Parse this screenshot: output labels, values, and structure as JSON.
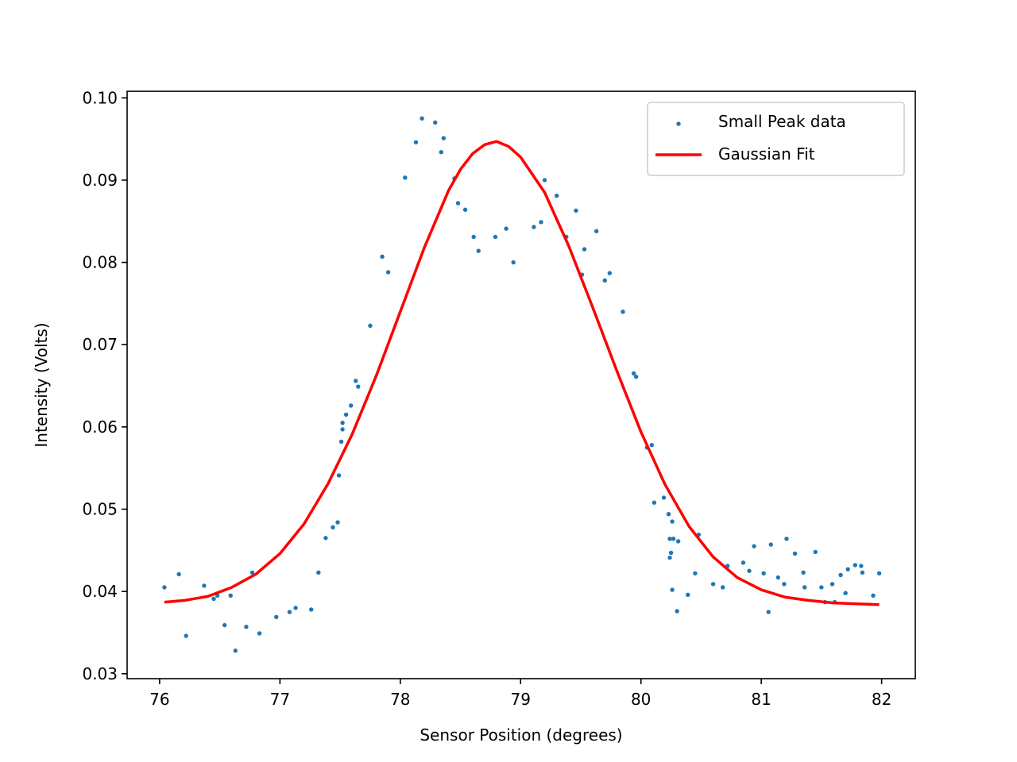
{
  "chart_data": {
    "type": "scatter",
    "title": "",
    "xlabel": "Sensor Position (degrees)",
    "ylabel": "Intensity (Volts)",
    "xlim": [
      75.73,
      82.28
    ],
    "ylim": [
      0.0294,
      0.1008
    ],
    "x_ticks": [
      76,
      77,
      78,
      79,
      80,
      81,
      82
    ],
    "x_tick_labels": [
      "76",
      "77",
      "78",
      "79",
      "80",
      "81",
      "82"
    ],
    "y_ticks": [
      0.03,
      0.04,
      0.05,
      0.06,
      0.07,
      0.08,
      0.09,
      0.1
    ],
    "y_tick_labels": [
      "0.03",
      "0.04",
      "0.05",
      "0.06",
      "0.07",
      "0.08",
      "0.09",
      "0.10"
    ],
    "grid": false,
    "legend_position": "top-right",
    "series": [
      {
        "name": "Small Peak data",
        "kind": "scatter",
        "color": "#1f77b4",
        "points": [
          [
            76.04,
            0.0405
          ],
          [
            76.16,
            0.0421
          ],
          [
            76.22,
            0.0346
          ],
          [
            76.37,
            0.0407
          ],
          [
            76.45,
            0.0391
          ],
          [
            76.48,
            0.0395
          ],
          [
            76.54,
            0.0359
          ],
          [
            76.59,
            0.0395
          ],
          [
            76.63,
            0.0328
          ],
          [
            76.72,
            0.0357
          ],
          [
            76.77,
            0.0423
          ],
          [
            76.83,
            0.0349
          ],
          [
            76.97,
            0.0369
          ],
          [
            77.08,
            0.0375
          ],
          [
            77.13,
            0.038
          ],
          [
            77.26,
            0.0378
          ],
          [
            77.32,
            0.0423
          ],
          [
            77.38,
            0.0465
          ],
          [
            77.44,
            0.0478
          ],
          [
            77.48,
            0.0484
          ],
          [
            77.49,
            0.0541
          ],
          [
            77.51,
            0.0582
          ],
          [
            77.52,
            0.0597
          ],
          [
            77.52,
            0.0605
          ],
          [
            77.55,
            0.0615
          ],
          [
            77.59,
            0.0626
          ],
          [
            77.63,
            0.0656
          ],
          [
            77.65,
            0.0649
          ],
          [
            77.75,
            0.0723
          ],
          [
            77.85,
            0.0807
          ],
          [
            77.9,
            0.0788
          ],
          [
            78.04,
            0.0903
          ],
          [
            78.13,
            0.0946
          ],
          [
            78.18,
            0.0975
          ],
          [
            78.29,
            0.097
          ],
          [
            78.34,
            0.0934
          ],
          [
            78.36,
            0.0951
          ],
          [
            78.45,
            0.0902
          ],
          [
            78.48,
            0.0872
          ],
          [
            78.54,
            0.0864
          ],
          [
            78.61,
            0.0831
          ],
          [
            78.65,
            0.0814
          ],
          [
            78.79,
            0.0831
          ],
          [
            78.88,
            0.0841
          ],
          [
            78.94,
            0.08
          ],
          [
            79.11,
            0.0843
          ],
          [
            79.17,
            0.0849
          ],
          [
            79.2,
            0.09
          ],
          [
            79.3,
            0.0881
          ],
          [
            79.38,
            0.0831
          ],
          [
            79.46,
            0.0863
          ],
          [
            79.51,
            0.0785
          ],
          [
            79.53,
            0.0816
          ],
          [
            79.63,
            0.0838
          ],
          [
            79.7,
            0.0778
          ],
          [
            79.74,
            0.0787
          ],
          [
            79.85,
            0.074
          ],
          [
            79.94,
            0.0665
          ],
          [
            79.96,
            0.0661
          ],
          [
            80.05,
            0.0575
          ],
          [
            80.09,
            0.0578
          ],
          [
            80.11,
            0.0508
          ],
          [
            80.19,
            0.0514
          ],
          [
            80.23,
            0.0494
          ],
          [
            80.24,
            0.0464
          ],
          [
            80.24,
            0.0441
          ],
          [
            80.25,
            0.0447
          ],
          [
            80.26,
            0.0485
          ],
          [
            80.26,
            0.0402
          ],
          [
            80.27,
            0.0464
          ],
          [
            80.3,
            0.0376
          ],
          [
            80.31,
            0.0461
          ],
          [
            80.39,
            0.0396
          ],
          [
            80.45,
            0.0422
          ],
          [
            80.48,
            0.0469
          ],
          [
            80.6,
            0.0409
          ],
          [
            80.68,
            0.0405
          ],
          [
            80.72,
            0.0431
          ],
          [
            80.85,
            0.0435
          ],
          [
            80.9,
            0.0425
          ],
          [
            80.94,
            0.0455
          ],
          [
            81.02,
            0.0422
          ],
          [
            81.06,
            0.0375
          ],
          [
            81.08,
            0.0457
          ],
          [
            81.14,
            0.0417
          ],
          [
            81.19,
            0.0409
          ],
          [
            81.21,
            0.0464
          ],
          [
            81.28,
            0.0446
          ],
          [
            81.35,
            0.0423
          ],
          [
            81.36,
            0.0405
          ],
          [
            81.45,
            0.0448
          ],
          [
            81.5,
            0.0405
          ],
          [
            81.53,
            0.0387
          ],
          [
            81.59,
            0.0409
          ],
          [
            81.61,
            0.0387
          ],
          [
            81.66,
            0.042
          ],
          [
            81.7,
            0.0398
          ],
          [
            81.72,
            0.0427
          ],
          [
            81.78,
            0.0432
          ],
          [
            81.83,
            0.0431
          ],
          [
            81.84,
            0.0423
          ],
          [
            81.93,
            0.0395
          ],
          [
            81.98,
            0.0422
          ]
        ]
      },
      {
        "name": "Gaussian Fit",
        "kind": "line",
        "color": "#ff0000",
        "points": [
          [
            76.04,
            0.0387
          ],
          [
            76.2,
            0.0389
          ],
          [
            76.4,
            0.0394
          ],
          [
            76.6,
            0.0405
          ],
          [
            76.8,
            0.0421
          ],
          [
            77.0,
            0.0446
          ],
          [
            77.2,
            0.0482
          ],
          [
            77.4,
            0.0531
          ],
          [
            77.6,
            0.0591
          ],
          [
            77.8,
            0.0662
          ],
          [
            78.0,
            0.074
          ],
          [
            78.2,
            0.0818
          ],
          [
            78.4,
            0.0887
          ],
          [
            78.5,
            0.0913
          ],
          [
            78.6,
            0.0932
          ],
          [
            78.7,
            0.0943
          ],
          [
            78.8,
            0.0947
          ],
          [
            78.9,
            0.0941
          ],
          [
            79.0,
            0.0928
          ],
          [
            79.2,
            0.0885
          ],
          [
            79.4,
            0.082
          ],
          [
            79.6,
            0.0745
          ],
          [
            79.8,
            0.0668
          ],
          [
            80.0,
            0.0594
          ],
          [
            80.2,
            0.053
          ],
          [
            80.4,
            0.0479
          ],
          [
            80.6,
            0.0442
          ],
          [
            80.8,
            0.0417
          ],
          [
            81.0,
            0.0402
          ],
          [
            81.2,
            0.0393
          ],
          [
            81.4,
            0.0389
          ],
          [
            81.6,
            0.0386
          ],
          [
            81.8,
            0.0385
          ],
          [
            81.98,
            0.0384
          ]
        ]
      }
    ]
  }
}
